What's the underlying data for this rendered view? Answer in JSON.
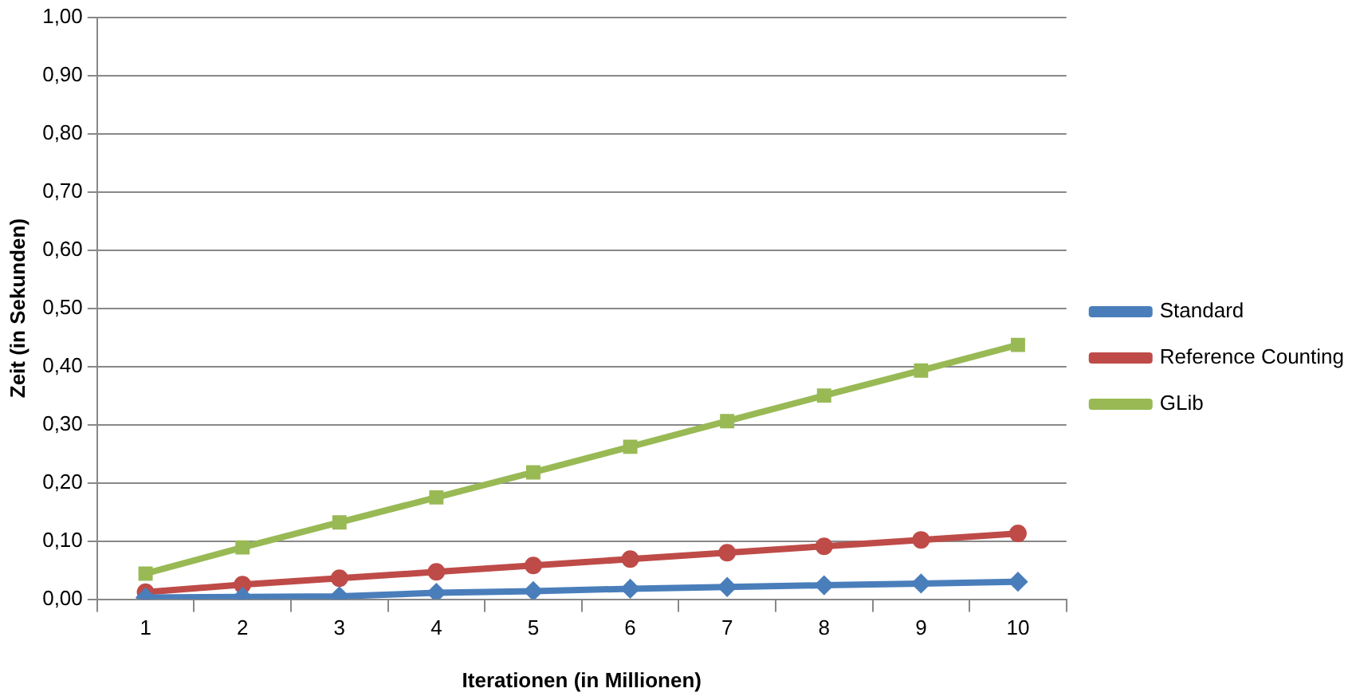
{
  "chart_data": {
    "type": "line",
    "xlabel": "Iterationen (in Millionen)",
    "ylabel": "Zeit (in Sekunden)",
    "categories": [
      "1",
      "2",
      "3",
      "4",
      "5",
      "6",
      "7",
      "8",
      "9",
      "10"
    ],
    "series": [
      {
        "name": "Standard",
        "color": "#4a7ebb",
        "marker": "diamond",
        "values": [
          0.003,
          0.004,
          0.005,
          0.011,
          0.014,
          0.018,
          0.021,
          0.024,
          0.027,
          0.03
        ]
      },
      {
        "name": "Reference Counting",
        "color": "#be4b48",
        "marker": "circle",
        "values": [
          0.012,
          0.025,
          0.036,
          0.047,
          0.058,
          0.069,
          0.08,
          0.091,
          0.102,
          0.113
        ]
      },
      {
        "name": "GLib",
        "color": "#98b954",
        "marker": "square",
        "values": [
          0.044,
          0.089,
          0.132,
          0.175,
          0.218,
          0.262,
          0.306,
          0.35,
          0.393,
          0.437
        ]
      }
    ],
    "ylim": [
      0,
      1
    ],
    "yticks": [
      {
        "value": 0,
        "label": "0,00"
      },
      {
        "value": 0.1,
        "label": "0,10"
      },
      {
        "value": 0.2,
        "label": "0,20"
      },
      {
        "value": 0.3,
        "label": "0,30"
      },
      {
        "value": 0.4,
        "label": "0,40"
      },
      {
        "value": 0.5,
        "label": "0,50"
      },
      {
        "value": 0.6,
        "label": "0,60"
      },
      {
        "value": 0.7,
        "label": "0,70"
      },
      {
        "value": 0.8,
        "label": "0,80"
      },
      {
        "value": 0.9,
        "label": "0,90"
      },
      {
        "value": 1,
        "label": "1,00"
      }
    ],
    "grid": "y",
    "legend": "right",
    "line_style": "solid"
  }
}
